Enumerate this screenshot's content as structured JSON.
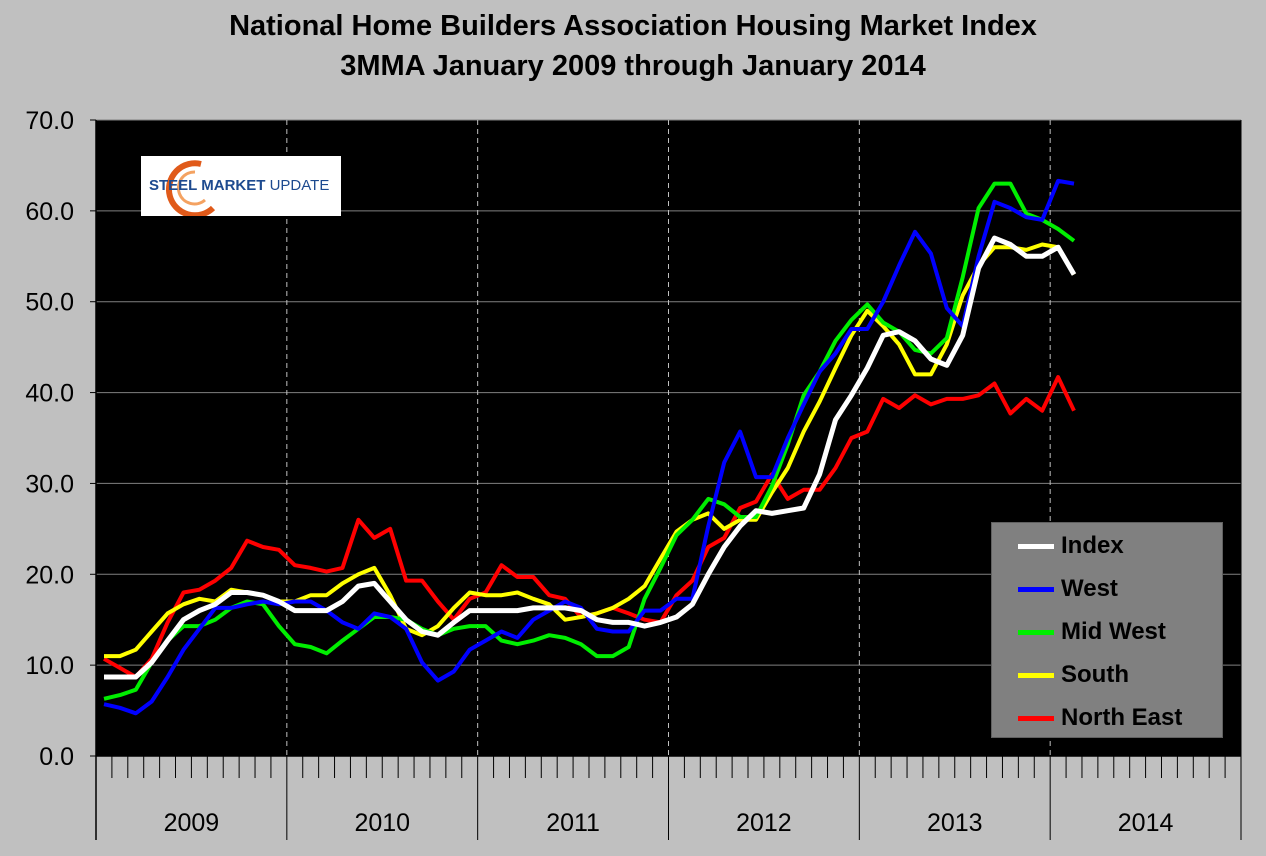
{
  "chart_data": {
    "type": "line",
    "title": "National Home Builders Association Housing Market Index",
    "subtitle": "3MMA January 2009 through January 2014",
    "xlabel": "",
    "ylabel": "",
    "ylim": [
      0,
      70
    ],
    "yticks": [
      "0.0",
      "10.0",
      "20.0",
      "30.0",
      "40.0",
      "50.0",
      "60.0",
      "70.0"
    ],
    "years": [
      "2009",
      "2010",
      "2011",
      "2012",
      "2013",
      "2014"
    ],
    "x_start": "2009-01",
    "x_end": "2014-01",
    "vertical_gridlines": "dashed at year boundaries",
    "legend_position": "bottom-right",
    "series": [
      {
        "name": "Index",
        "color": "#ffffff",
        "values": [
          8.7,
          8.7,
          8.7,
          10.3,
          12.7,
          15.0,
          16.0,
          16.7,
          18.0,
          18.0,
          17.7,
          17.0,
          16.0,
          16.0,
          16.0,
          17.0,
          18.7,
          19.0,
          17.0,
          15.0,
          13.7,
          13.3,
          14.7,
          16.0,
          16.0,
          16.0,
          16.0,
          16.3,
          16.3,
          16.3,
          16.0,
          15.0,
          14.7,
          14.7,
          14.3,
          14.7,
          15.3,
          16.7,
          20.0,
          23.0,
          25.3,
          27.0,
          26.7,
          27.0,
          27.3,
          31.0,
          37.0,
          39.7,
          42.7,
          46.3,
          46.7,
          45.7,
          43.7,
          43.0,
          46.3,
          53.7,
          57.0,
          56.3,
          55.0,
          55.0,
          56.0,
          53.0
        ]
      },
      {
        "name": "West",
        "color": "#0000ff",
        "values": [
          5.7,
          5.3,
          4.7,
          6.0,
          8.7,
          11.7,
          14.0,
          16.3,
          16.3,
          16.7,
          17.0,
          16.7,
          17.0,
          17.0,
          16.0,
          14.7,
          14.0,
          15.7,
          15.3,
          14.0,
          10.3,
          8.3,
          9.3,
          11.7,
          12.7,
          13.7,
          13.0,
          15.0,
          16.0,
          17.0,
          16.3,
          14.0,
          13.7,
          13.7,
          16.0,
          16.0,
          17.3,
          17.3,
          25.3,
          32.3,
          35.7,
          30.7,
          30.7,
          35.0,
          38.7,
          42.3,
          44.3,
          47.0,
          47.0,
          50.0,
          54.0,
          57.7,
          55.3,
          49.3,
          47.3,
          55.0,
          61.0,
          60.3,
          59.3,
          59.0,
          63.3,
          63.0
        ]
      },
      {
        "name": "Mid West",
        "color": "#00ee00",
        "values": [
          6.3,
          6.7,
          7.3,
          10.3,
          12.7,
          14.3,
          14.3,
          15.0,
          16.3,
          17.0,
          16.7,
          14.3,
          12.3,
          12.0,
          11.3,
          12.7,
          14.0,
          15.3,
          15.3,
          15.0,
          14.0,
          13.3,
          14.0,
          14.3,
          14.3,
          12.7,
          12.3,
          12.7,
          13.3,
          13.0,
          12.3,
          11.0,
          11.0,
          12.0,
          17.3,
          20.7,
          24.3,
          26.0,
          28.3,
          27.7,
          26.3,
          26.3,
          29.7,
          34.3,
          39.7,
          42.3,
          45.7,
          48.0,
          49.7,
          47.7,
          46.7,
          44.7,
          44.3,
          46.0,
          52.7,
          60.3,
          63.0,
          63.0,
          59.7,
          59.0,
          58.0,
          56.7
        ]
      },
      {
        "name": "South",
        "color": "#ffff00",
        "values": [
          11.0,
          11.0,
          11.7,
          13.7,
          15.7,
          16.7,
          17.3,
          17.0,
          18.3,
          18.0,
          17.7,
          17.0,
          17.0,
          17.7,
          17.7,
          19.0,
          20.0,
          20.7,
          17.7,
          14.0,
          13.3,
          14.3,
          16.3,
          18.0,
          17.7,
          17.7,
          18.0,
          17.3,
          16.7,
          15.0,
          15.3,
          15.7,
          16.3,
          17.3,
          18.7,
          21.7,
          24.7,
          26.0,
          26.7,
          25.0,
          26.0,
          26.0,
          29.0,
          31.7,
          35.7,
          39.0,
          42.7,
          46.3,
          49.0,
          47.3,
          45.3,
          42.0,
          42.0,
          45.3,
          50.7,
          54.0,
          56.0,
          56.0,
          55.7,
          56.3,
          56.0,
          53.0
        ]
      },
      {
        "name": "North East",
        "color": "#ff0000",
        "values": [
          10.7,
          9.7,
          8.7,
          10.7,
          14.7,
          18.0,
          18.3,
          19.3,
          20.7,
          23.7,
          23.0,
          22.7,
          21.0,
          20.7,
          20.3,
          20.7,
          26.0,
          24.0,
          25.0,
          19.3,
          19.3,
          17.0,
          15.0,
          17.3,
          18.0,
          21.0,
          19.7,
          19.7,
          17.7,
          17.3,
          15.3,
          15.7,
          16.3,
          15.7,
          15.0,
          14.7,
          17.7,
          19.3,
          23.0,
          24.0,
          27.3,
          28.0,
          31.0,
          28.3,
          29.3,
          29.3,
          31.7,
          35.0,
          35.7,
          39.3,
          38.3,
          39.7,
          38.7,
          39.3,
          39.3,
          39.7,
          41.0,
          37.7,
          39.3,
          38.0,
          41.7,
          38.0
        ]
      }
    ]
  },
  "logo": {
    "word1": "STEEL",
    "word2": "MARKET",
    "word3": "UPDATE",
    "ring_color": "#e05a1a",
    "text_color": "#1d4a8f"
  },
  "legend": {
    "items": [
      {
        "label": "Index",
        "color": "#ffffff"
      },
      {
        "label": "West",
        "color": "#0000ff"
      },
      {
        "label": "Mid West",
        "color": "#00ee00"
      },
      {
        "label": "South",
        "color": "#ffff00"
      },
      {
        "label": "North East",
        "color": "#ff0000"
      }
    ]
  }
}
